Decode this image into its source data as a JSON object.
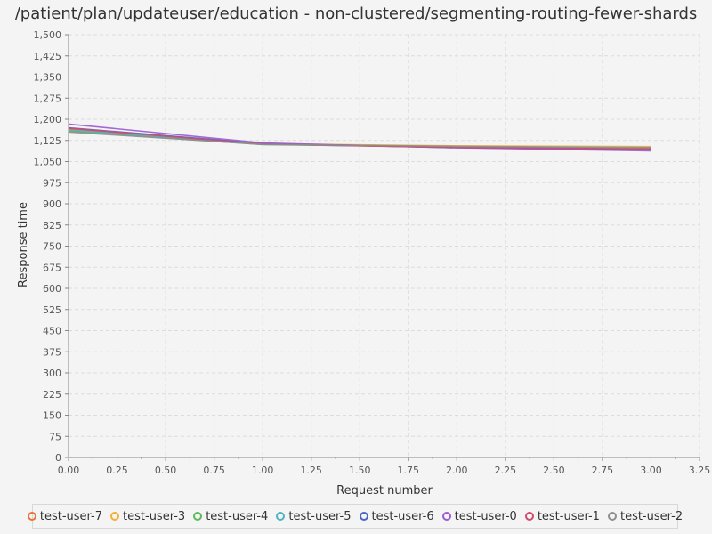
{
  "chart_data": {
    "type": "line",
    "title": "/patient/plan/updateuser/education - non-clustered/segmenting-routing-fewer-shards",
    "xlabel": "Request number",
    "ylabel": "Response time",
    "xlim": [
      0,
      3.25
    ],
    "ylim": [
      0,
      1500
    ],
    "xticks": [
      "0.00",
      "0.25",
      "0.50",
      "0.75",
      "1.00",
      "1.25",
      "1.50",
      "1.75",
      "2.00",
      "2.25",
      "2.50",
      "2.75",
      "3.00",
      "3.25"
    ],
    "yticks": [
      "0",
      "75",
      "150",
      "225",
      "300",
      "375",
      "450",
      "525",
      "600",
      "675",
      "750",
      "825",
      "900",
      "975",
      "1,050",
      "1,125",
      "1,200",
      "1,275",
      "1,350",
      "1,425",
      "1,500"
    ],
    "grid": true,
    "legend_position": "bottom",
    "x": [
      0,
      1,
      2,
      3
    ],
    "series": [
      {
        "name": "test-user-7",
        "color": "#e8743b",
        "values": [
          1165,
          1112,
          1103,
          1096
        ]
      },
      {
        "name": "test-user-3",
        "color": "#f2b134",
        "values": [
          1160,
          1113,
          1106,
          1103
        ]
      },
      {
        "name": "test-user-4",
        "color": "#5cb85c",
        "values": [
          1158,
          1110,
          1102,
          1098
        ]
      },
      {
        "name": "test-user-5",
        "color": "#4fb3c4",
        "values": [
          1162,
          1111,
          1101,
          1097
        ]
      },
      {
        "name": "test-user-6",
        "color": "#4a63c4",
        "values": [
          1170,
          1114,
          1099,
          1092
        ]
      },
      {
        "name": "test-user-0",
        "color": "#9b59d0",
        "values": [
          1183,
          1116,
          1099,
          1088
        ]
      },
      {
        "name": "test-user-1",
        "color": "#d04a6e",
        "values": [
          1168,
          1112,
          1100,
          1095
        ]
      },
      {
        "name": "test-user-2",
        "color": "#8f8f8f",
        "values": [
          1155,
          1111,
          1104,
          1100
        ]
      }
    ]
  }
}
